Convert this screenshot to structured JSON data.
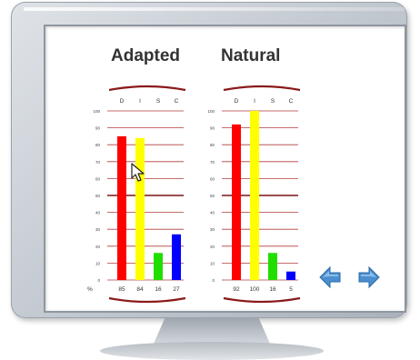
{
  "chart_data": [
    {
      "type": "bar",
      "title": "Adapted",
      "categories": [
        "D",
        "I",
        "S",
        "C"
      ],
      "values": [
        85,
        84,
        16,
        27
      ],
      "ylim": [
        0,
        100
      ],
      "yticks": [
        "0",
        "10",
        "20",
        "30",
        "40",
        "50",
        "60",
        "70",
        "80",
        "90",
        "100"
      ],
      "unit_label": "%",
      "grid": true
    },
    {
      "type": "bar",
      "title": "Natural",
      "categories": [
        "D",
        "I",
        "S",
        "C"
      ],
      "values": [
        92,
        100,
        16,
        5
      ],
      "ylim": [
        0,
        100
      ],
      "yticks": [
        "0",
        "10",
        "20",
        "30",
        "40",
        "50",
        "60",
        "70",
        "80",
        "90",
        "100"
      ],
      "grid": true
    }
  ],
  "bar_colors": [
    "#ff0000",
    "#ffff00",
    "#22dd00",
    "#0000ff"
  ],
  "nav": {
    "back_icon": "left-arrow-icon",
    "forward_icon": "right-arrow-icon",
    "color": "#4a8fd0"
  }
}
